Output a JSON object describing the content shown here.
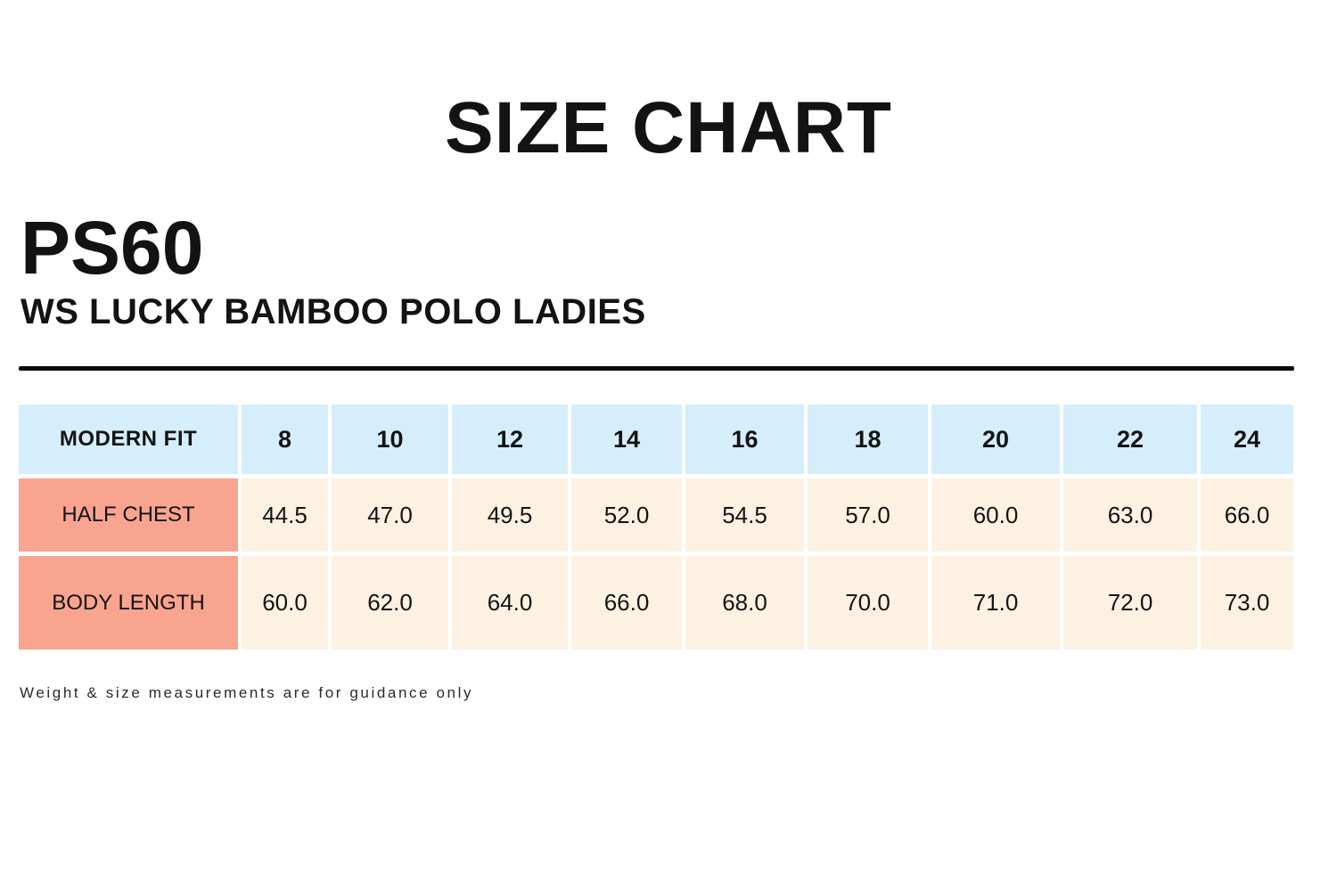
{
  "page": {
    "title": "SIZE CHART",
    "product_code": "PS60",
    "product_name": "WS LUCKY BAMBOO POLO LADIES",
    "footnote": "Weight & size measurements are for guidance only"
  },
  "colors": {
    "header_bg": "#d6eefb",
    "label_bg": "#f9a48f",
    "cell_bg": "#fdf1e2",
    "divider": "#0a0a0a",
    "text": "#141414"
  },
  "chart_data": {
    "type": "table",
    "title": "SIZE CHART",
    "fit_label": "MODERN FIT",
    "columns": [
      "8",
      "10",
      "12",
      "14",
      "16",
      "18",
      "20",
      "22",
      "24"
    ],
    "rows": [
      {
        "label": "HALF CHEST",
        "values": [
          "44.5",
          "47.0",
          "49.5",
          "52.0",
          "54.5",
          "57.0",
          "60.0",
          "63.0",
          "66.0"
        ]
      },
      {
        "label": "BODY LENGTH",
        "values": [
          "60.0",
          "62.0",
          "64.0",
          "66.0",
          "68.0",
          "70.0",
          "71.0",
          "72.0",
          "73.0"
        ]
      }
    ]
  }
}
